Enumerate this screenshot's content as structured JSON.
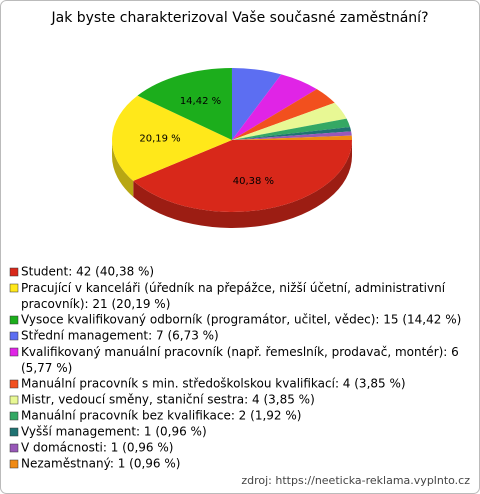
{
  "chart_data": {
    "type": "pie",
    "title": "Jak byste charakterizoval Vaše současné zaměstnání?",
    "categories": [
      "Student: 42 (40,38 %)",
      "Pracující v kanceláři (úředník na přepážce, nižší účetní, administrativní pracovník): 21 (20,19 %)",
      "Vysoce kvalifikovaný odborník (programátor, učitel, vědec): 15 (14,42 %)",
      "Střední management: 7 (6,73 %)",
      "Kvalifikovaný manuální pracovník (např. řemeslník, prodavač, montér): 6 (5,77 %)",
      "Manuální pracovník s min. středoškolskou kvalifikací: 4 (3,85 %)",
      "Mistr, vedoucí směny, staniční sestra: 4 (3,85 %)",
      "Manuální pracovník bez kvalifikace: 2 (1,92 %)",
      "Vyšší management: 1 (0,96 %)",
      "V domácnosti: 1 (0,96 %)",
      "Nezaměstnaný: 1 (0,96 %)"
    ],
    "values": [
      40.38,
      20.19,
      14.42,
      6.73,
      5.77,
      3.85,
      3.85,
      1.92,
      0.96,
      0.96,
      0.96
    ],
    "value_labels": [
      "40,38 %",
      "20,19 %",
      "14,42 %",
      null,
      null,
      null,
      null,
      null,
      null,
      null,
      null
    ],
    "colors": [
      "#d8281a",
      "#ffe81a",
      "#1cae1c",
      "#5c6ef2",
      "#e024e6",
      "#f2501e",
      "#e8f894",
      "#34a864",
      "#1f7272",
      "#9858b8",
      "#f08a14"
    ],
    "legend": "bottom-left",
    "source": "zdroj: https://neeticka-reklama.vyplnto.cz"
  }
}
